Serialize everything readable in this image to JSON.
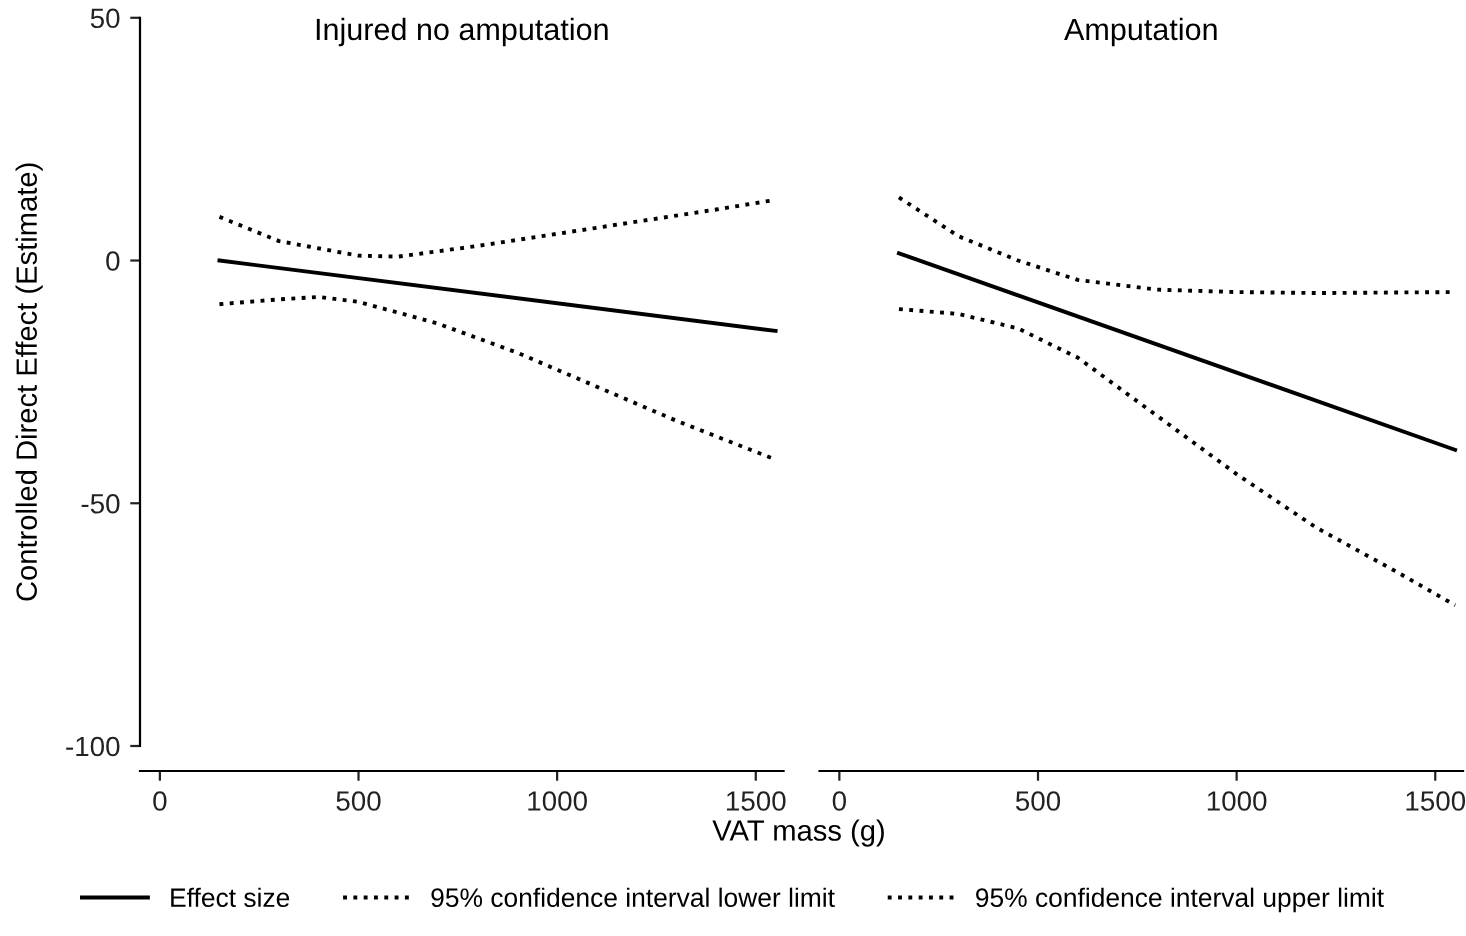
{
  "chart_data": [
    {
      "type": "line",
      "title": "Injured no amputation",
      "xlabel": "VAT mass (g)",
      "ylabel": "Controlled Direct Effect (Estimate)",
      "xlim": [
        -50,
        1570
      ],
      "ylim": [
        -100,
        50
      ],
      "xticks": [
        0,
        500,
        1000,
        1500
      ],
      "yticks": [
        -100,
        -50,
        0,
        50
      ],
      "legend": "bottom",
      "series": [
        {
          "name": "Effect size",
          "color": "#000000",
          "line_style": "solid",
          "x": [
            150,
            1550
          ],
          "values": [
            0,
            -14.5
          ]
        },
        {
          "name": "95% confidence interval lower limit",
          "color": "#000000",
          "line_style": "dotted",
          "x": [
            150,
            300,
            400,
            500,
            700,
            900,
            1100,
            1300,
            1550
          ],
          "values": [
            -9,
            -8,
            -7.5,
            -8.5,
            -13,
            -19,
            -26,
            -33,
            -41
          ]
        },
        {
          "name": "95% confidence interval upper limit",
          "color": "#000000",
          "line_style": "dotted",
          "x": [
            150,
            300,
            500,
            600,
            800,
            1000,
            1200,
            1400,
            1550
          ],
          "values": [
            9,
            4,
            1,
            0.8,
            3,
            5.5,
            8,
            10.5,
            12.5
          ]
        }
      ]
    },
    {
      "type": "line",
      "title": "Amputation",
      "xlim": [
        -50,
        1570
      ],
      "ylim": [
        -100,
        50
      ],
      "xticks": [
        0,
        500,
        1000,
        1500
      ],
      "tick_labels": "x",
      "series": [
        {
          "color": "#000000",
          "line_style": "solid",
          "x": [
            150,
            1550
          ],
          "values": [
            1.5,
            -39
          ]
        },
        {
          "color": "#000000",
          "line_style": "dotted",
          "x": [
            150,
            300,
            450,
            600,
            800,
            1000,
            1200,
            1400,
            1550
          ],
          "values": [
            -10,
            -11,
            -14,
            -20,
            -32,
            -44,
            -55,
            -64,
            -71
          ]
        },
        {
          "color": "#000000",
          "line_style": "dotted",
          "x": [
            150,
            300,
            450,
            600,
            800,
            1000,
            1200,
            1550
          ],
          "values": [
            13,
            5,
            0,
            -4,
            -6,
            -6.5,
            -6.7,
            -6.5
          ]
        }
      ]
    }
  ]
}
